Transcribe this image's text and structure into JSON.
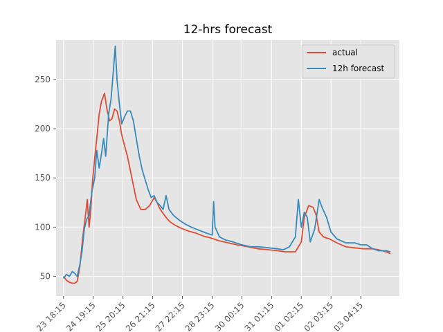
{
  "chart_data": {
    "type": "line",
    "title": "12-hrs forecast",
    "xlabel": "",
    "ylabel": "",
    "x_tick_labels": [
      "23 18:15",
      "24 19:15",
      "25 20:15",
      "26 21:15",
      "27 22:15",
      "28 23:15",
      "30 00:15",
      "31 01:15",
      "01 02:15",
      "02 03:15",
      "03 04:15"
    ],
    "x_range": [
      -0.25,
      11.3
    ],
    "y_ticks": [
      "50",
      "100",
      "150",
      "200",
      "250"
    ],
    "ylim": [
      30,
      290
    ],
    "grid": true,
    "legend_position": "upper right",
    "colors": {
      "actual": "#E24A33",
      "forecast": "#348ABD",
      "panel": "#E5E5E5",
      "grid": "#FFFFFF"
    },
    "series": [
      {
        "name": "actual",
        "color": "#E24A33",
        "x": [
          0,
          0.1,
          0.2,
          0.3,
          0.38,
          0.46,
          0.55,
          0.65,
          0.73,
          0.8,
          0.86,
          0.92,
          0.98,
          1.05,
          1.12,
          1.2,
          1.28,
          1.38,
          1.46,
          1.55,
          1.63,
          1.72,
          1.8,
          1.88,
          1.95,
          2.05,
          2.15,
          2.3,
          2.45,
          2.6,
          2.75,
          2.9,
          3.05,
          3.15,
          3.22,
          3.3,
          3.4,
          3.5,
          3.6,
          3.75,
          3.95,
          4.2,
          4.45,
          4.7,
          4.95,
          5.25,
          5.55,
          5.85,
          6.2,
          6.55,
          6.9,
          7.2,
          7.45,
          7.8,
          8.0,
          8.1,
          8.25,
          8.4,
          8.5,
          8.6,
          8.75,
          8.95,
          9.2,
          9.5,
          9.8,
          10.1,
          10.4,
          10.6,
          10.85,
          11.0
        ],
        "values": [
          50,
          46,
          44,
          43,
          43,
          45,
          60,
          90,
          110,
          128,
          100,
          118,
          148,
          170,
          190,
          215,
          228,
          236,
          220,
          208,
          210,
          220,
          218,
          208,
          195,
          183,
          172,
          150,
          128,
          118,
          118,
          122,
          130,
          125,
          120,
          116,
          112,
          108,
          105,
          102,
          99,
          96,
          94,
          91,
          89,
          86,
          84,
          82,
          80,
          78,
          77,
          76,
          75,
          75,
          85,
          110,
          122,
          120,
          112,
          95,
          90,
          88,
          84,
          80,
          79,
          78,
          78,
          77,
          75,
          73
        ]
      },
      {
        "name": "12h forecast",
        "color": "#348ABD",
        "x": [
          0,
          0.1,
          0.2,
          0.3,
          0.38,
          0.46,
          0.55,
          0.62,
          0.7,
          0.78,
          0.86,
          0.95,
          1.05,
          1.12,
          1.2,
          1.28,
          1.35,
          1.42,
          1.52,
          1.6,
          1.68,
          1.74,
          1.8,
          1.88,
          1.96,
          2.05,
          2.15,
          2.25,
          2.35,
          2.45,
          2.55,
          2.65,
          2.75,
          2.85,
          2.95,
          3.05,
          3.15,
          3.25,
          3.35,
          3.45,
          3.55,
          3.7,
          3.9,
          4.1,
          4.3,
          4.55,
          4.8,
          5.0,
          5.05,
          5.1,
          5.25,
          5.45,
          5.7,
          6.0,
          6.3,
          6.6,
          6.9,
          7.2,
          7.4,
          7.6,
          7.8,
          7.9,
          8.0,
          8.1,
          8.2,
          8.3,
          8.45,
          8.6,
          8.7,
          8.85,
          9.0,
          9.2,
          9.5,
          9.8,
          10.0,
          10.2,
          10.4,
          10.6,
          10.85,
          11.0
        ],
        "values": [
          48,
          52,
          50,
          55,
          53,
          50,
          62,
          75,
          98,
          108,
          112,
          135,
          150,
          178,
          160,
          175,
          190,
          172,
          215,
          230,
          260,
          284,
          250,
          225,
          205,
          212,
          218,
          218,
          208,
          190,
          172,
          158,
          148,
          138,
          130,
          132,
          125,
          122,
          118,
          132,
          118,
          112,
          107,
          103,
          100,
          97,
          94,
          92,
          126,
          100,
          90,
          87,
          85,
          82,
          80,
          80,
          79,
          78,
          77,
          80,
          90,
          128,
          100,
          115,
          110,
          85,
          98,
          128,
          120,
          110,
          95,
          88,
          84,
          84,
          82,
          82,
          78,
          76,
          76,
          75
        ]
      }
    ]
  }
}
